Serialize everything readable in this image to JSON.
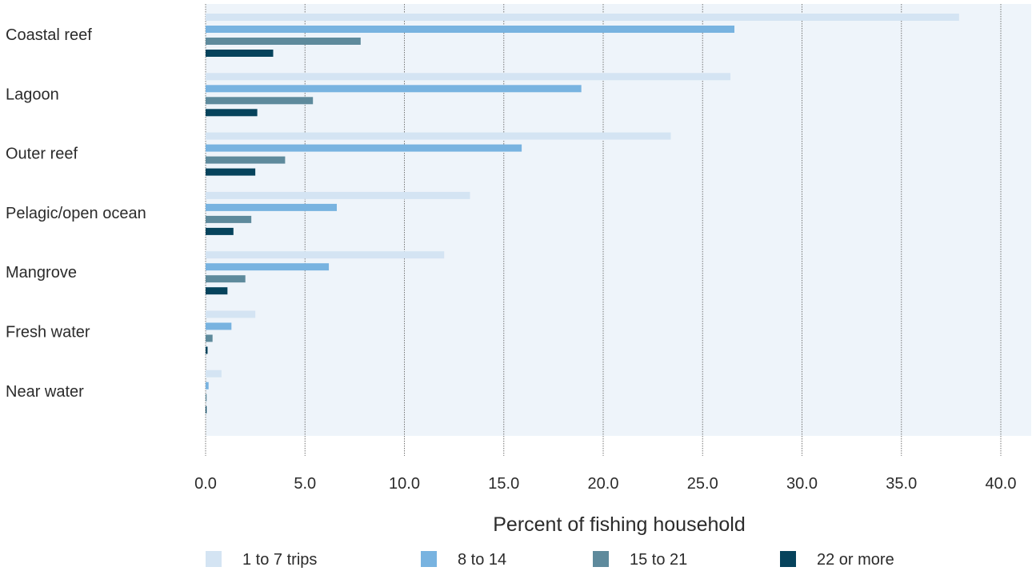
{
  "chart_data": {
    "type": "bar",
    "orientation": "horizontal",
    "categories": [
      "Coastal reef",
      "Lagoon",
      "Outer reef",
      "Pelagic/open ocean",
      "Mangrove",
      "Fresh water",
      "Near water"
    ],
    "series": [
      {
        "name": "1 to 7 trips",
        "color": "#d4e4f3",
        "values": [
          37.9,
          26.4,
          23.4,
          13.3,
          12.0,
          2.5,
          0.8
        ]
      },
      {
        "name": "8 to 14",
        "color": "#78b3e0",
        "values": [
          26.6,
          18.9,
          15.9,
          6.6,
          6.2,
          1.3,
          0.15
        ]
      },
      {
        "name": "15 to 21",
        "color": "#5e8a9c",
        "values": [
          7.8,
          5.4,
          4.0,
          2.3,
          2.0,
          0.35,
          0.05
        ]
      },
      {
        "name": "22 or more",
        "color": "#06435c",
        "values": [
          3.4,
          2.6,
          2.5,
          1.4,
          1.1,
          0.1,
          0.05
        ]
      }
    ],
    "xlabel": "Percent of fishing household",
    "ylabel": "",
    "title": "",
    "xlim": [
      0,
      40
    ],
    "xticks": [
      "0.0",
      "5.0",
      "10.0",
      "15.0",
      "20.0",
      "25.0",
      "30.0",
      "35.0",
      "40.0"
    ],
    "grid": true,
    "legend_position": "bottom",
    "plot_background": "#eef4fa"
  }
}
